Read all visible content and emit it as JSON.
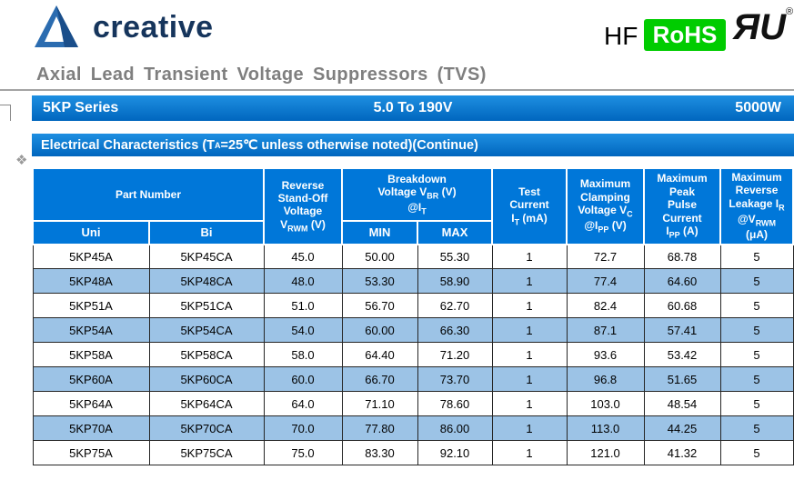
{
  "brand": {
    "name": "creative"
  },
  "badges": {
    "hf": "HF",
    "rohs": "RoHS",
    "ul_mark": "ЯU",
    "registered": "®"
  },
  "page_title": "Axial Lead Transient Voltage Suppressors (TVS)",
  "series_banner": {
    "series": "5KP Series",
    "voltage_range": "5.0 To 190V",
    "power": "5000W"
  },
  "section_banner": {
    "text": "Electrical Characteristics   (T~A~=25℃ unless otherwise noted)(Continue)"
  },
  "decorations": {
    "anchor": "❖"
  },
  "colors": {
    "header_bg": "#0077D9",
    "alt_row_bg": "#9CC3E6",
    "banner_bg": "#0072C6",
    "rohs_green": "#00CC00",
    "title_gray": "#7F7F7F"
  },
  "table": {
    "headers": {
      "part_number": "Part Number",
      "uni": "Uni",
      "bi": "Bi",
      "standoff": "Reverse|Stand-Off|Voltage|V~RWM~ (V)",
      "breakdown": "Breakdown|Voltage V~BR~ (V)|@I~T~",
      "min": "MIN",
      "max": "MAX",
      "test_current": "Test|Current|I~T~ (mA)",
      "clamping": "Maximum|Clamping|Voltage V~C~|@I~PP~ (V)",
      "peak_pulse": "Maximum|Peak|Pulse|Current|I~PP~ (A)",
      "leakage": "Maximum|Reverse|Leakage I~R~|@V~RWM~|(μA)"
    },
    "rows": [
      [
        "5KP45A",
        "5KP45CA",
        "45.0",
        "50.00",
        "55.30",
        "1",
        "72.7",
        "68.78",
        "5"
      ],
      [
        "5KP48A",
        "5KP48CA",
        "48.0",
        "53.30",
        "58.90",
        "1",
        "77.4",
        "64.60",
        "5"
      ],
      [
        "5KP51A",
        "5KP51CA",
        "51.0",
        "56.70",
        "62.70",
        "1",
        "82.4",
        "60.68",
        "5"
      ],
      [
        "5KP54A",
        "5KP54CA",
        "54.0",
        "60.00",
        "66.30",
        "1",
        "87.1",
        "57.41",
        "5"
      ],
      [
        "5KP58A",
        "5KP58CA",
        "58.0",
        "64.40",
        "71.20",
        "1",
        "93.6",
        "53.42",
        "5"
      ],
      [
        "5KP60A",
        "5KP60CA",
        "60.0",
        "66.70",
        "73.70",
        "1",
        "96.8",
        "51.65",
        "5"
      ],
      [
        "5KP64A",
        "5KP64CA",
        "64.0",
        "71.10",
        "78.60",
        "1",
        "103.0",
        "48.54",
        "5"
      ],
      [
        "5KP70A",
        "5KP70CA",
        "70.0",
        "77.80",
        "86.00",
        "1",
        "113.0",
        "44.25",
        "5"
      ],
      [
        "5KP75A",
        "5KP75CA",
        "75.0",
        "83.30",
        "92.10",
        "1",
        "121.0",
        "41.32",
        "5"
      ]
    ]
  }
}
